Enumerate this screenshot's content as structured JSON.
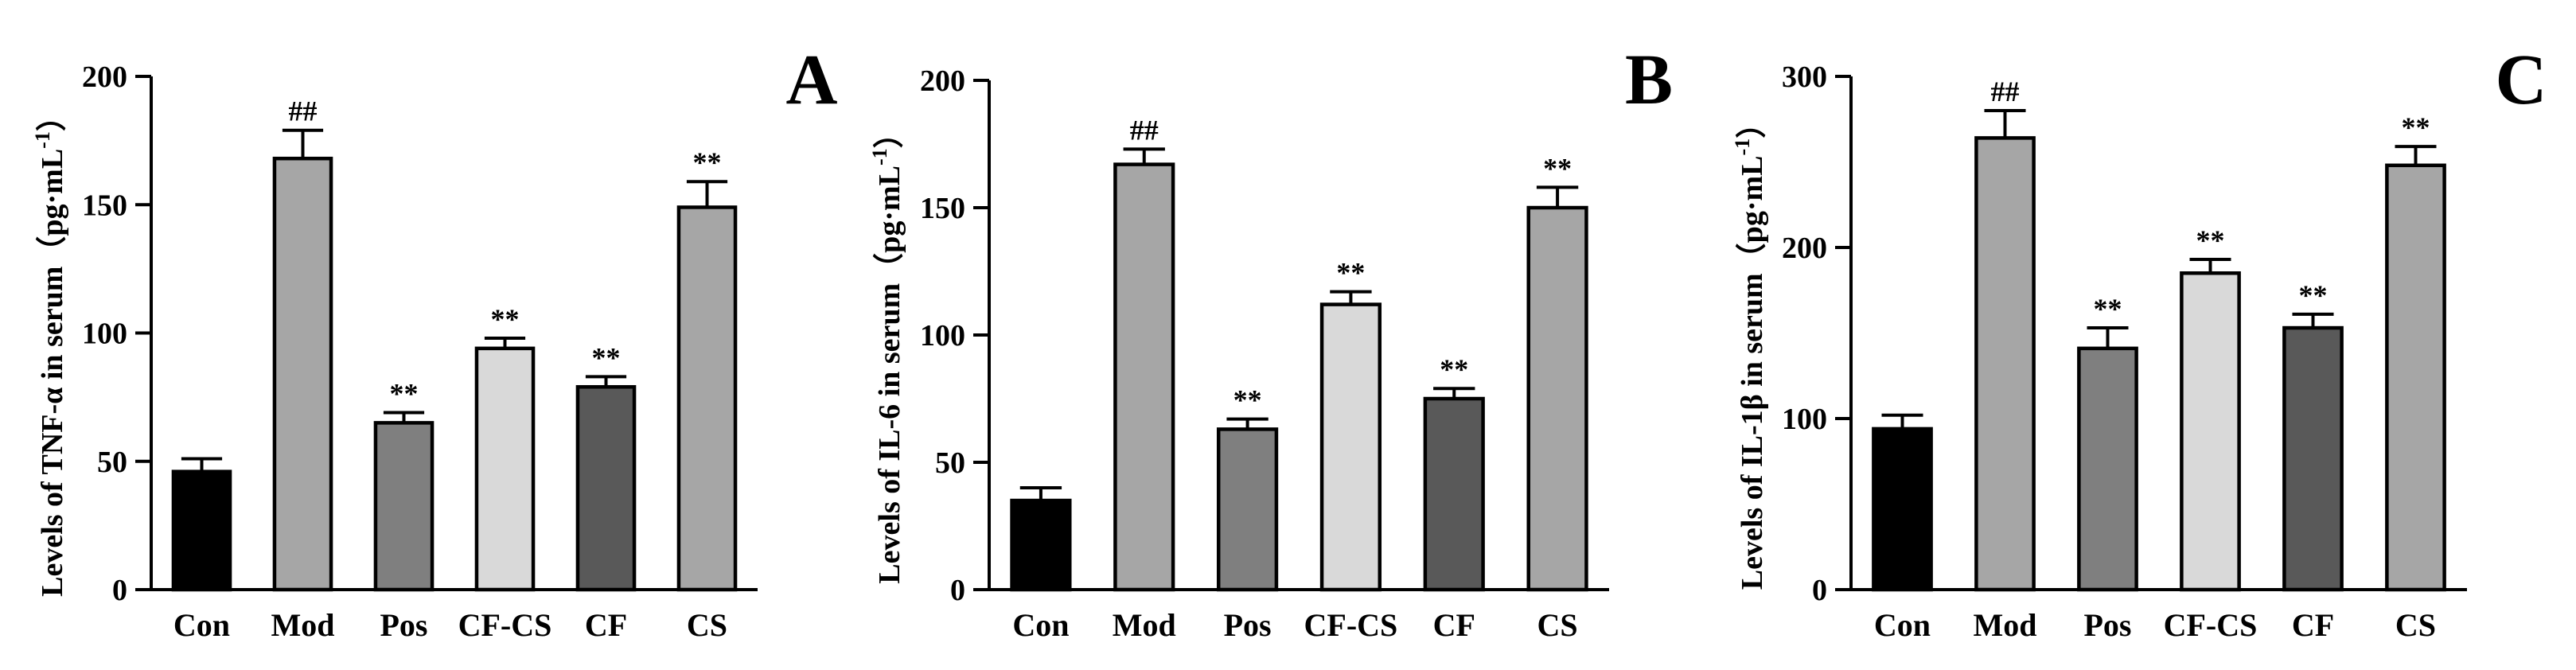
{
  "chart_data": [
    {
      "type": "bar",
      "panel_label": "A",
      "ylabel": "Levels of TNF-α in serum（pg·mL",
      "ylabel_sup": "-1",
      "ylabel_tail": "）",
      "ylim": [
        0,
        200
      ],
      "yticks": [
        "0",
        "50",
        "100",
        "150",
        "200"
      ],
      "categories": [
        "Con",
        "Mod",
        "Pos",
        "CF-CS",
        "CF",
        "CS"
      ],
      "values": [
        46,
        168,
        65,
        94,
        79,
        149
      ],
      "errors": [
        5,
        11,
        4,
        4,
        4,
        10
      ],
      "annotations": [
        "",
        "##",
        "**",
        "**",
        "**",
        "**"
      ],
      "colors": [
        "#000000",
        "#a6a6a6",
        "#7f7f7f",
        "#d9d9d9",
        "#595959",
        "#a6a6a6"
      ]
    },
    {
      "type": "bar",
      "panel_label": "B",
      "ylabel": "Levels of IL-6 in serum（pg·mL",
      "ylabel_sup": "-1",
      "ylabel_tail": "）",
      "ylim": [
        0,
        200
      ],
      "yticks": [
        "0",
        "50",
        "100",
        "150",
        "200"
      ],
      "categories": [
        "Con",
        "Mod",
        "Pos",
        "CF-CS",
        "CF",
        "CS"
      ],
      "values": [
        35,
        167,
        63,
        112,
        75,
        150
      ],
      "errors": [
        5,
        6,
        4,
        5,
        4,
        8
      ],
      "annotations": [
        "",
        "##",
        "**",
        "**",
        "**",
        "**"
      ],
      "colors": [
        "#000000",
        "#a6a6a6",
        "#7f7f7f",
        "#d9d9d9",
        "#595959",
        "#a6a6a6"
      ]
    },
    {
      "type": "bar",
      "panel_label": "C",
      "ylabel": "Levels of IL-1β in serum（pg·mL",
      "ylabel_sup": "-1",
      "ylabel_tail": "）",
      "ylim": [
        0,
        300
      ],
      "yticks": [
        "0",
        "100",
        "200",
        "300"
      ],
      "categories": [
        "Con",
        "Mod",
        "Pos",
        "CF-CS",
        "CF",
        "CS"
      ],
      "values": [
        94,
        264,
        141,
        185,
        153,
        248
      ],
      "errors": [
        8,
        16,
        12,
        8,
        8,
        11
      ],
      "annotations": [
        "",
        "##",
        "**",
        "**",
        "**",
        "**"
      ],
      "colors": [
        "#000000",
        "#a6a6a6",
        "#7f7f7f",
        "#d9d9d9",
        "#595959",
        "#a6a6a6"
      ]
    }
  ]
}
